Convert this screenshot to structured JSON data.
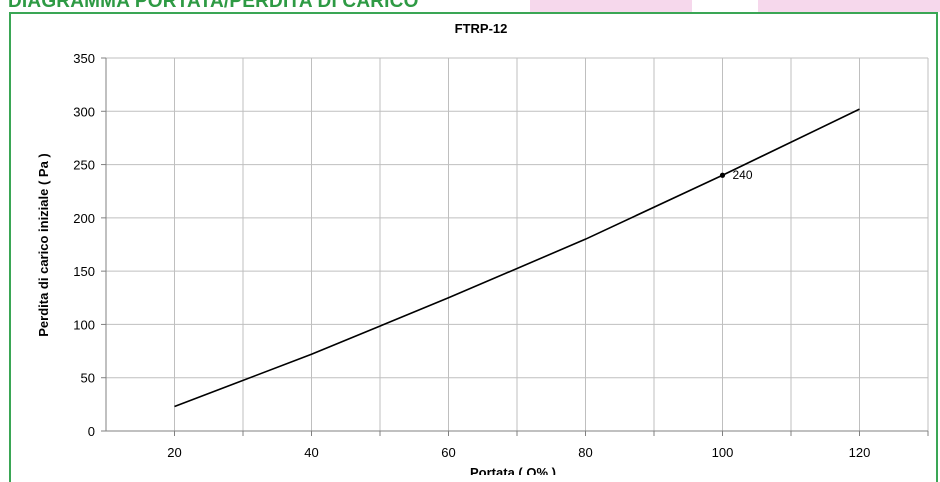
{
  "header": {
    "title": "DIAGRAMMA PORTATA/PERDITA DI CARICO"
  },
  "colors": {
    "accent": "#3aa655",
    "line": "#000000",
    "grid": "#bfbfbf",
    "tab": "#f6d8ec"
  },
  "chart_data": {
    "type": "line",
    "title": "FTRP-12",
    "xlabel": "Portata ( Q% )",
    "ylabel": "Perdita di carico iniziale ( Pa )",
    "xlim": [
      10,
      130
    ],
    "ylim": [
      0,
      350
    ],
    "x_ticks": [
      20,
      40,
      60,
      80,
      100,
      120
    ],
    "x_tick_labels": [
      "20",
      "40",
      "60",
      "80",
      "100",
      "120"
    ],
    "y_ticks": [
      0,
      50,
      100,
      150,
      200,
      250,
      300,
      350
    ],
    "y_tick_labels": [
      "0",
      "50",
      "100",
      "150",
      "200",
      "250",
      "300",
      "350"
    ],
    "grid": true,
    "series": [
      {
        "x": [
          20,
          40,
          60,
          80,
          100,
          120
        ],
        "values": [
          23,
          72,
          125,
          180,
          240,
          302
        ]
      }
    ],
    "annotations": [
      {
        "x": 100,
        "y": 240,
        "text": "240"
      }
    ]
  }
}
